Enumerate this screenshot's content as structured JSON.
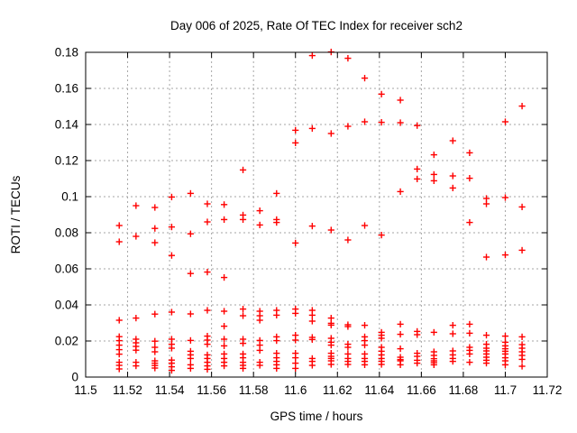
{
  "chart_data": {
    "type": "scatter",
    "title": "Day 006 of 2025, Rate Of TEC Index for receiver sch2",
    "xlabel": "GPS time / hours",
    "ylabel": "ROTI / TECUs",
    "xlim": [
      11.5,
      11.72
    ],
    "ylim": [
      0,
      0.18
    ],
    "xticks": [
      11.5,
      11.52,
      11.54,
      11.56,
      11.58,
      11.6,
      11.62,
      11.64,
      11.66,
      11.68,
      11.7,
      11.72
    ],
    "xtick_labels": [
      "11.5",
      "11.52",
      "11.54",
      "11.56",
      "11.58",
      "11.6",
      "11.62",
      "11.64",
      "11.66",
      "11.68",
      "11.7",
      "11.72"
    ],
    "yticks": [
      0,
      0.02,
      0.04,
      0.06,
      0.08,
      0.1,
      0.12,
      0.14,
      0.16,
      0.18
    ],
    "ytick_labels": [
      "0",
      "0.02",
      "0.04",
      "0.06",
      "0.08",
      "0.1",
      "0.12",
      "0.14",
      "0.16",
      "0.18"
    ],
    "grid": true,
    "legend_position": "none",
    "marker": "plus",
    "marker_color": "#ff0000",
    "series": [
      {
        "name": "ROTI",
        "columns": [
          {
            "t": 11.516,
            "roti": [
              0.084,
              0.075,
              0.0315,
              0.0224,
              0.0202,
              0.0177,
              0.0152,
              0.0127,
              0.0082,
              0.0065,
              0.0045
            ]
          },
          {
            "t": 11.524,
            "roti": [
              0.095,
              0.078,
              0.0327,
              0.021,
              0.019,
              0.017,
              0.0149,
              0.0082,
              0.0062
            ]
          },
          {
            "t": 11.533,
            "roti": [
              0.094,
              0.0824,
              0.0745,
              0.0349,
              0.0199,
              0.0165,
              0.014,
              0.009,
              0.0077,
              0.0064,
              0.005
            ]
          },
          {
            "t": 11.541,
            "roti": [
              0.0998,
              0.0832,
              0.0674,
              0.036,
              0.021,
              0.0182,
              0.016,
              0.0094,
              0.0077,
              0.0057,
              0.0037
            ]
          },
          {
            "t": 11.55,
            "roti": [
              0.1018,
              0.0794,
              0.0574,
              0.035,
              0.0203,
              0.0143,
              0.0123,
              0.0103,
              0.0068,
              0.0048
            ]
          },
          {
            "t": 11.558,
            "roti": [
              0.096,
              0.086,
              0.0582,
              0.037,
              0.0227,
              0.0205,
              0.0182,
              0.0123,
              0.0103,
              0.0082,
              0.0062,
              0.0043
            ]
          },
          {
            "t": 11.566,
            "roti": [
              0.0956,
              0.0873,
              0.0552,
              0.0365,
              0.0282,
              0.021,
              0.0173,
              0.0128,
              0.0103,
              0.0082,
              0.0062
            ]
          },
          {
            "t": 11.575,
            "roti": [
              0.1148,
              0.0898,
              0.0873,
              0.0377,
              0.034,
              0.021,
              0.0187,
              0.0128,
              0.0107,
              0.0082,
              0.0065,
              0.0048
            ]
          },
          {
            "t": 11.583,
            "roti": [
              0.0922,
              0.0843,
              0.0365,
              0.034,
              0.0315,
              0.0203,
              0.0177,
              0.0148,
              0.0082,
              0.0065
            ]
          },
          {
            "t": 11.591,
            "roti": [
              0.1018,
              0.0873,
              0.0857,
              0.037,
              0.0343,
              0.0223,
              0.0202,
              0.0132,
              0.0107,
              0.0087,
              0.0068,
              0.0048
            ]
          },
          {
            "t": 11.6,
            "roti": [
              0.1368,
              0.1298,
              0.0743,
              0.0377,
              0.0353,
              0.0232,
              0.0205,
              0.0132,
              0.0107,
              0.0077,
              0.0048
            ]
          },
          {
            "t": 11.608,
            "roti": [
              0.1782,
              0.1378,
              0.0837,
              0.037,
              0.0343,
              0.031,
              0.022,
              0.0208,
              0.0103,
              0.0087,
              0.0065
            ]
          },
          {
            "t": 11.617,
            "roti": [
              0.1802,
              0.135,
              0.0815,
              0.0327,
              0.0298,
              0.0288,
              0.0215,
              0.0193,
              0.0177,
              0.0132,
              0.0115,
              0.0103,
              0.009,
              0.007
            ]
          },
          {
            "t": 11.625,
            "roti": [
              0.1767,
              0.139,
              0.076,
              0.029,
              0.028,
              0.0182,
              0.0165,
              0.0128,
              0.0103,
              0.0087,
              0.007
            ]
          },
          {
            "t": 11.633,
            "roti": [
              0.1657,
              0.1415,
              0.084,
              0.0287,
              0.0223,
              0.0202,
              0.0177,
              0.0128,
              0.0103,
              0.0087,
              0.0068
            ]
          },
          {
            "t": 11.641,
            "roti": [
              0.1568,
              0.1412,
              0.0787,
              0.0248,
              0.0232,
              0.0215,
              0.0165,
              0.0143,
              0.0123,
              0.0103,
              0.0087,
              0.007
            ]
          },
          {
            "t": 11.65,
            "roti": [
              0.1535,
              0.141,
              0.1028,
              0.0293,
              0.0237,
              0.0157,
              0.011,
              0.0097,
              0.009,
              0.0068
            ]
          },
          {
            "t": 11.658,
            "roti": [
              0.1394,
              0.1153,
              0.1098,
              0.0253,
              0.0235,
              0.0132,
              0.0115,
              0.0093,
              0.0077
            ]
          },
          {
            "t": 11.666,
            "roti": [
              0.1232,
              0.1123,
              0.1088,
              0.0248,
              0.014,
              0.012,
              0.0102,
              0.009,
              0.008,
              0.0068
            ]
          },
          {
            "t": 11.675,
            "roti": [
              0.131,
              0.1115,
              0.1048,
              0.0287,
              0.024,
              0.0145,
              0.0123,
              0.0103,
              0.0087
            ]
          },
          {
            "t": 11.683,
            "roti": [
              0.1243,
              0.1102,
              0.0857,
              0.0293,
              0.0243,
              0.0165,
              0.0148,
              0.0128,
              0.0082
            ]
          },
          {
            "t": 11.691,
            "roti": [
              0.099,
              0.096,
              0.0665,
              0.0232,
              0.0182,
              0.016,
              0.0145,
              0.0128,
              0.011,
              0.0093,
              0.0077
            ]
          },
          {
            "t": 11.7,
            "roti": [
              0.1415,
              0.0995,
              0.0677,
              0.0227,
              0.0193,
              0.0173,
              0.0157,
              0.0143,
              0.0128,
              0.0107,
              0.009,
              0.0068
            ]
          },
          {
            "t": 11.708,
            "roti": [
              0.1502,
              0.0943,
              0.0703,
              0.0223,
              0.018,
              0.016,
              0.014,
              0.012,
              0.0098,
              0.006
            ]
          }
        ]
      }
    ]
  },
  "style": {
    "background_color": "#ffffff",
    "frame_color": "#000000",
    "grid_color": "#a6a6a6",
    "text_color": "#000000",
    "point_color": "#ff0000"
  }
}
